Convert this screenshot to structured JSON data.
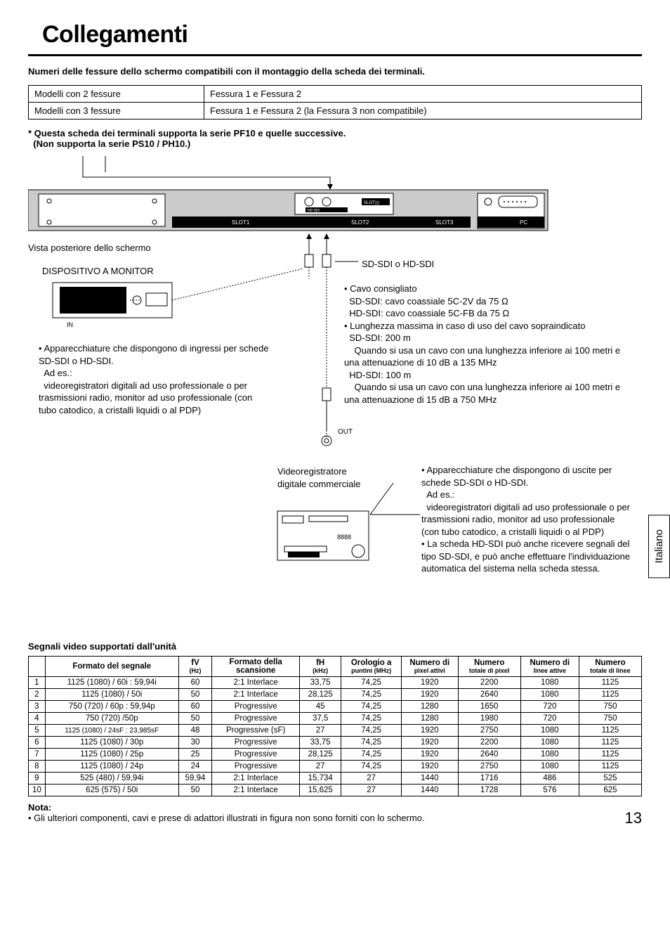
{
  "title": "Collegamenti",
  "subtitle": "Numeri delle fessure dello schermo compatibili con il montaggio della scheda dei terminali.",
  "slotTable": {
    "rows": [
      [
        "Modelli con 2 fessure",
        "Fessura 1 e Fessura 2"
      ],
      [
        "Modelli con 3 fessure",
        "Fessura 1 e Fessura 2 (la Fessura 3 non compatibile)"
      ]
    ]
  },
  "supportNote1": "* Questa scheda dei terminali supporta la serie PF10 e quelle successive.",
  "supportNote2": "(Non supporta la serie PS10 / PH10.)",
  "diagram": {
    "rearView": "Vista posteriore dello schermo",
    "monitorDevice": "DISPOSITIVO A MONITOR",
    "inLabel": "IN",
    "outLabel": "OUT",
    "slot1": "SLOT1",
    "slot2": "SLOT2",
    "slot3": "SLOT3",
    "pc": "PC",
    "sdi": "SD-SDI o HD-SDI",
    "cableRec": "Cavo consigliato",
    "cableSd": "SD-SDI: cavo coassiale 5C-2V da 75 Ω",
    "cableHd": "HD-SDI: cavo coassiale 5C-FB da 75 Ω",
    "maxLen": "Lunghezza massima in caso di uso del cavo sopraindicato",
    "sd200": "SD-SDI: 200 m",
    "sdNote": "Quando si usa un cavo con una lunghezza inferiore ai 100 metri e una attenuazione di 10 dB a 135 MHz",
    "hd100": "HD-SDI: 100 m",
    "hdNote": "Quando si usa un cavo con una lunghezza inferiore ai 100 metri e una attenuazione di 15 dB a 750 MHz",
    "appIn1": "Apparecchiature che dispongono di ingressi per schede SD-SDI o HD-SDI.",
    "adEs": "Ad es.:",
    "appIn2": "videoregistratori digitali ad uso professionale o per trasmissioni radio, monitor ad uso professionale (con tubo catodico, a cristalli liquidi o al PDP)",
    "vcr": "Videoregistratore digitale commerciale",
    "appOut1": "Apparecchiature che dispongono di uscite per schede SD-SDI o HD-SDI.",
    "appOut2": "videoregistratori digitali ad uso professionale o per trasmissioni radio, monitor ad uso professionale (con tubo catodico, a cristalli liquidi o al PDP)",
    "hdRx": "La scheda HD-SDI può anche ricevere segnali del tipo SD-SDI, e può anche effettuare l'individuazione automatica del sistema nella scheda stessa."
  },
  "langTab": "Italiano",
  "signalTitle": "Segnali video supportati dall'unità",
  "signalHeaders": {
    "format": "Formato del segnale",
    "fv": "fV",
    "fvUnit": "(Hz)",
    "scan": "Formato della scansione",
    "fh": "fH",
    "fhUnit": "(kHz)",
    "clk": "Orologio a",
    "clkUnit": "puntini (MHz)",
    "pa": "Numero di",
    "paUnit": "pixel attivi",
    "tp": "Numero",
    "tpUnit": "totale di pixel",
    "la": "Numero di",
    "laUnit": "linee attive",
    "tl": "Numero",
    "tlUnit": "totale di linee"
  },
  "signalRows": [
    [
      "1",
      "1125 (1080) / 60i : 59,94i",
      "60",
      "2:1 Interlace",
      "33,75",
      "74,25",
      "1920",
      "2200",
      "1080",
      "1125"
    ],
    [
      "2",
      "1125 (1080) / 50i",
      "50",
      "2:1 Interlace",
      "28,125",
      "74,25",
      "1920",
      "2640",
      "1080",
      "1125"
    ],
    [
      "3",
      "750 (720) / 60p : 59,94p",
      "60",
      "Progressive",
      "45",
      "74,25",
      "1280",
      "1650",
      "720",
      "750"
    ],
    [
      "4",
      "750 (720) /50p",
      "50",
      "Progressive",
      "37,5",
      "74,25",
      "1280",
      "1980",
      "720",
      "750"
    ],
    [
      "5",
      "1125 (1080) / 24sF : 23,985sF",
      "48",
      "Progressive (sF)",
      "27",
      "74,25",
      "1920",
      "2750",
      "1080",
      "1125"
    ],
    [
      "6",
      "1125 (1080) / 30p",
      "30",
      "Progressive",
      "33,75",
      "74,25",
      "1920",
      "2200",
      "1080",
      "1125"
    ],
    [
      "7",
      "1125 (1080) / 25p",
      "25",
      "Progressive",
      "28,125",
      "74,25",
      "1920",
      "2640",
      "1080",
      "1125"
    ],
    [
      "8",
      "1125 (1080) / 24p",
      "24",
      "Progressive",
      "27",
      "74,25",
      "1920",
      "2750",
      "1080",
      "1125"
    ],
    [
      "9",
      "525 (480) / 59,94i",
      "59,94",
      "2:1 Interlace",
      "15,734",
      "27",
      "1440",
      "1716",
      "486",
      "525"
    ],
    [
      "10",
      "625 (575) / 50i",
      "50",
      "2:1 Interlace",
      "15,625",
      "27",
      "1440",
      "1728",
      "576",
      "625"
    ]
  ],
  "footerNotaLabel": "Nota:",
  "footerNota": "Gli ulteriori componenti, cavi e prese di adattori illustrati in figura non sono forniti con lo schermo.",
  "pageNum": "13"
}
